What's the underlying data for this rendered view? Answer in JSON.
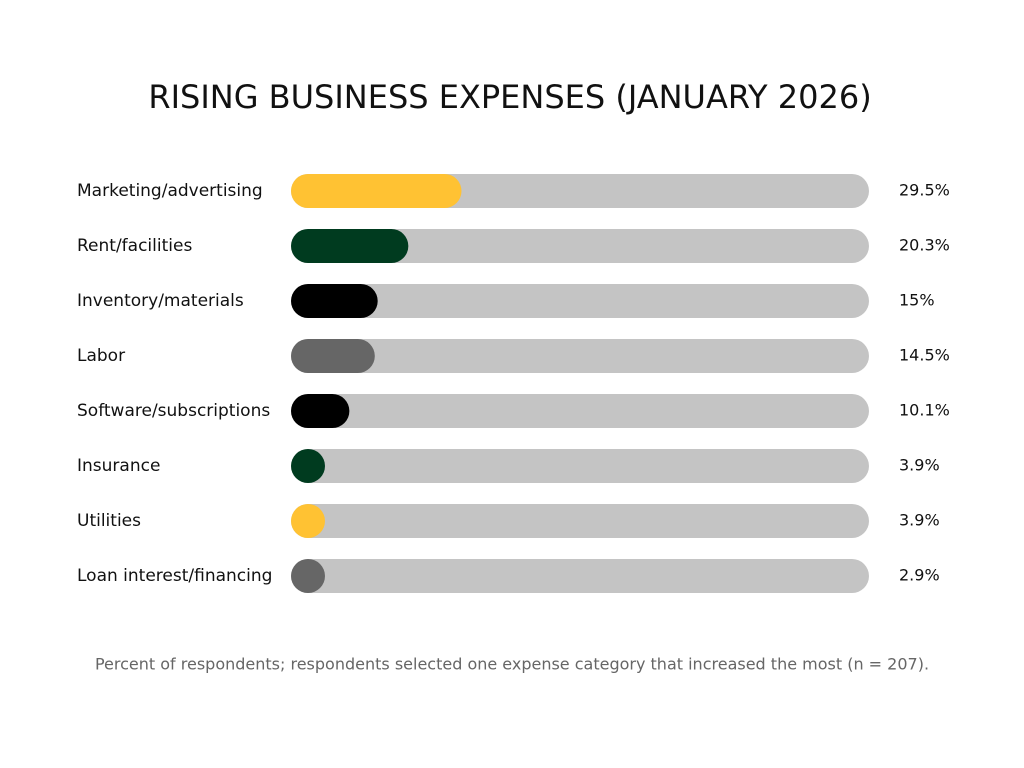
{
  "chart_data": {
    "type": "bar",
    "orientation": "horizontal",
    "title": "RISING BUSINESS EXPENSES (JANUARY 2026)",
    "categories": [
      "Marketing/advertising",
      "Rent/facilities",
      "Inventory/materials",
      "Labor",
      "Software/subscriptions",
      "Insurance",
      "Utilities",
      "Loan interest/financing"
    ],
    "values": [
      29.5,
      20.3,
      15,
      14.5,
      10.1,
      3.9,
      3.9,
      2.9
    ],
    "value_labels": [
      "29.5%",
      "20.3%",
      "15%",
      "14.5%",
      "10.1%",
      "3.9%",
      "3.9%",
      "2.9%"
    ],
    "colors": [
      "#FFC233",
      "#003B1F",
      "#000000",
      "#666666",
      "#000000",
      "#003B1F",
      "#FFC233",
      "#666666"
    ],
    "track_color": "#C4C4C4",
    "xlim": [
      0,
      100
    ],
    "note": "Percent of respondents; respondents selected one expense category that increased the most (n = 207)."
  }
}
